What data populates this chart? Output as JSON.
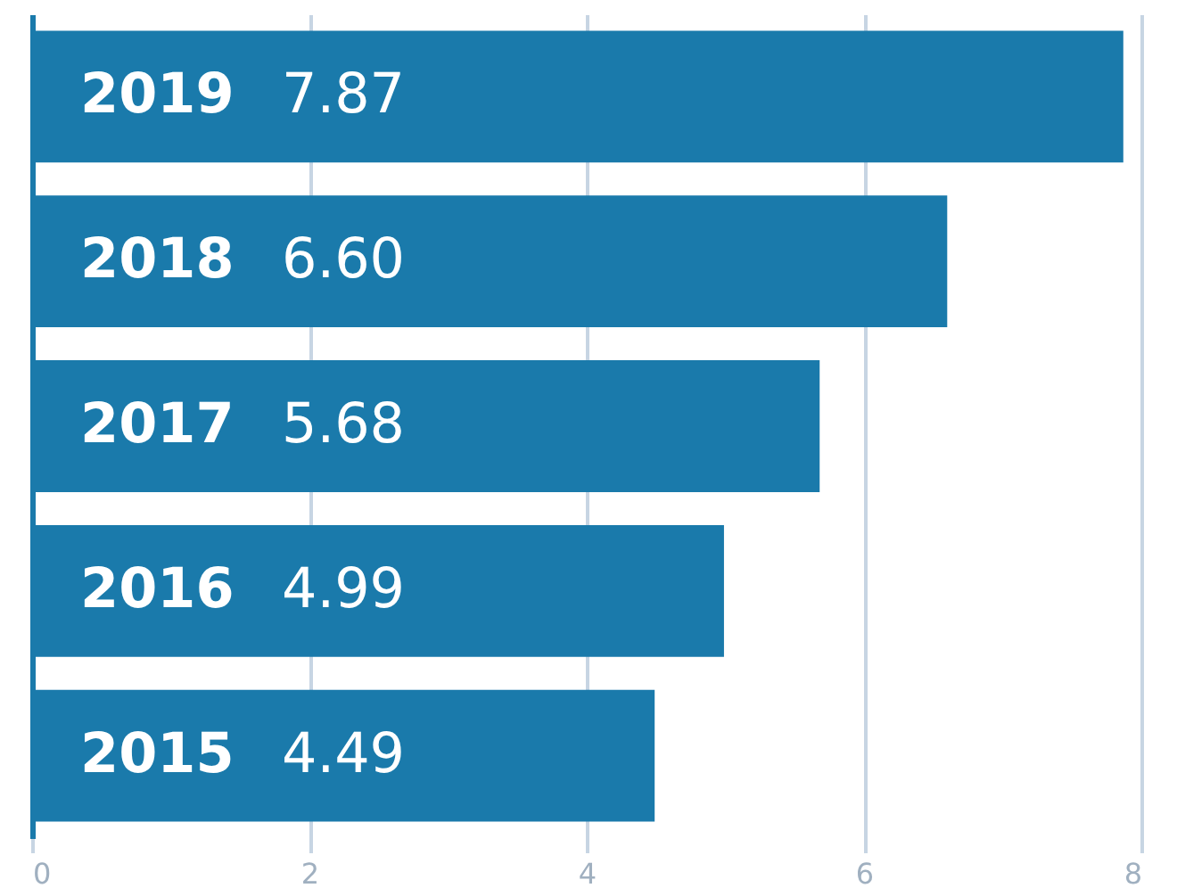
{
  "chart_data": {
    "type": "bar",
    "orientation": "horizontal",
    "categories": [
      "2019",
      "2018",
      "2017",
      "2016",
      "2015"
    ],
    "values": [
      7.87,
      6.6,
      5.68,
      4.99,
      4.49
    ],
    "value_labels": [
      "7.87",
      "6.60",
      "5.68",
      "4.99",
      "4.49"
    ],
    "color": "#1a7aab",
    "xlim": [
      0,
      8
    ],
    "xticks": [
      0,
      2,
      4,
      6,
      8
    ],
    "grid": "x"
  }
}
